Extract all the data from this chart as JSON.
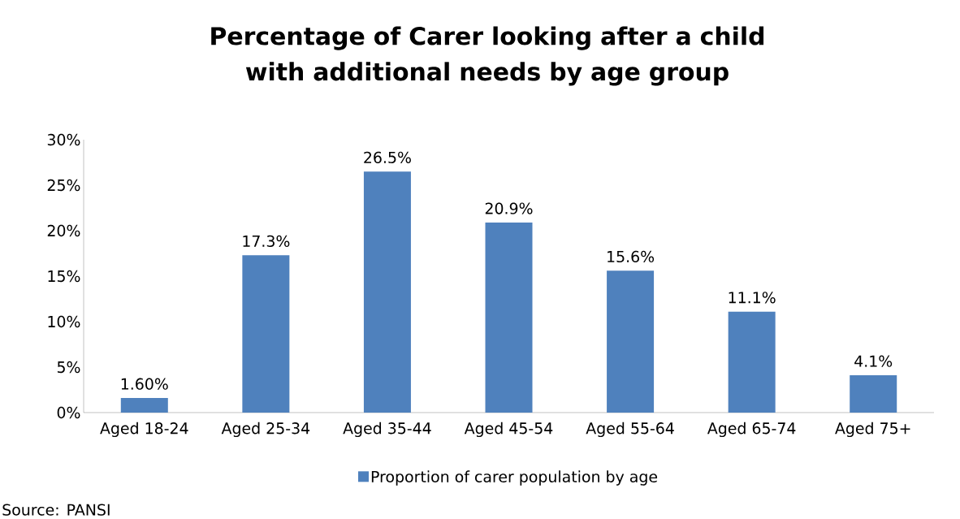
{
  "chart_data": {
    "type": "bar",
    "title": "Percentage of Carer looking after a child with additional needs by age group",
    "categories": [
      "Aged 18-24",
      "Aged 25-34",
      "Aged 35-44",
      "Aged 45-54",
      "Aged 55-64",
      "Aged 65-74",
      "Aged 75+"
    ],
    "series": [
      {
        "name": "Proportion of carer population by age",
        "color": "#4f81bd",
        "values": [
          1.6,
          17.3,
          26.5,
          20.9,
          15.6,
          11.1,
          4.1
        ],
        "value_labels": [
          "1.60%",
          "17.3%",
          "26.5%",
          "20.9%",
          "15.6%",
          "11.1%",
          "4.1%"
        ]
      }
    ],
    "ylim": [
      0,
      30
    ],
    "yticks": [
      {
        "value": 0,
        "label": "0%"
      },
      {
        "value": 5,
        "label": "5%"
      },
      {
        "value": 10,
        "label": "10%"
      },
      {
        "value": 15,
        "label": "15%"
      },
      {
        "value": 20,
        "label": "20%"
      },
      {
        "value": 25,
        "label": "25%"
      },
      {
        "value": 30,
        "label": "30%"
      }
    ],
    "legend": "bottom",
    "annotations": [
      "Source: PANSI"
    ]
  }
}
